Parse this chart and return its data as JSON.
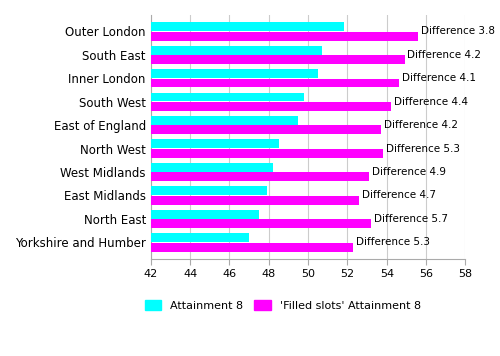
{
  "regions": [
    "Outer London",
    "South East",
    "Inner London",
    "South West",
    "East of England",
    "North West",
    "West Midlands",
    "East Midlands",
    "North East",
    "Yorkshire and Humber"
  ],
  "attainment8": [
    51.8,
    50.7,
    50.5,
    49.8,
    49.5,
    48.5,
    48.2,
    47.9,
    47.5,
    47.0
  ],
  "filled_slots": [
    55.6,
    54.9,
    54.6,
    54.2,
    53.7,
    53.8,
    53.1,
    52.6,
    53.2,
    52.3
  ],
  "differences": [
    3.8,
    4.2,
    4.1,
    4.4,
    4.2,
    5.3,
    4.9,
    4.7,
    5.7,
    5.3
  ],
  "cyan_color": "#00FFFF",
  "magenta_color": "#FF00FF",
  "xlim": [
    42,
    58
  ],
  "xticks": [
    42,
    44,
    46,
    48,
    50,
    52,
    54,
    56,
    58
  ],
  "bar_height": 0.38,
  "bar_gap": 0.02,
  "legend_label1": "Attainment 8",
  "legend_label2": "'Filled slots' Attainment 8",
  "background_color": "#ffffff",
  "grid_color": "#cccccc",
  "annotation_fontsize": 7.5,
  "label_fontsize": 8.5,
  "tick_fontsize": 8.0
}
